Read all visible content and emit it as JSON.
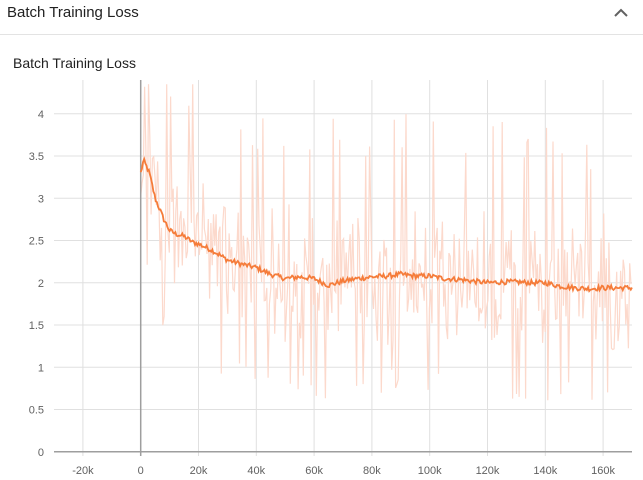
{
  "header": {
    "title": "Batch Training Loss",
    "collapse_icon": "chevron-up-icon"
  },
  "chart_data": {
    "type": "line",
    "title": "Batch Training Loss",
    "xlabel": "",
    "ylabel": "",
    "xlim": [
      -30000,
      170000
    ],
    "ylim": [
      -0.05,
      4.4
    ],
    "xticks": [
      -20000,
      0,
      20000,
      40000,
      60000,
      80000,
      100000,
      120000,
      140000,
      160000
    ],
    "xtick_labels": [
      "-20k",
      "0",
      "20k",
      "40k",
      "60k",
      "80k",
      "100k",
      "120k",
      "140k",
      "160k"
    ],
    "yticks": [
      0,
      0.5,
      1,
      1.5,
      2,
      2.5,
      3,
      3.5,
      4
    ],
    "ytick_labels": [
      "0",
      "0.5",
      "1",
      "1.5",
      "2",
      "2.5",
      "3",
      "3.5",
      "4"
    ],
    "grid": true,
    "colors": {
      "smoothed": "#f57c3a",
      "raw": "#fcd9cc",
      "grid": "#e0e0e0",
      "axis": "#9e9e9e"
    },
    "series": [
      {
        "x": [
          0,
          1000,
          3000,
          5000,
          8000,
          10000,
          12000,
          15000,
          18000,
          20000,
          25000,
          30000,
          35000,
          40000,
          45000,
          50000,
          55000,
          60000,
          65000,
          70000,
          75000,
          80000,
          85000,
          90000,
          95000,
          100000,
          105000,
          110000,
          115000,
          120000,
          125000,
          130000,
          135000,
          140000,
          145000,
          150000,
          155000,
          160000,
          165000,
          170000
        ],
        "y": [
          3.3,
          3.45,
          3.3,
          3.0,
          2.75,
          2.62,
          2.58,
          2.55,
          2.48,
          2.46,
          2.38,
          2.27,
          2.22,
          2.18,
          2.1,
          2.05,
          2.07,
          2.05,
          1.97,
          2.02,
          2.05,
          2.07,
          2.08,
          2.1,
          2.08,
          2.08,
          2.05,
          2.04,
          2.02,
          2.0,
          2.01,
          2.01,
          2.0,
          2.0,
          1.96,
          1.94,
          1.93,
          1.94,
          1.94,
          1.94
        ]
      }
    ]
  }
}
